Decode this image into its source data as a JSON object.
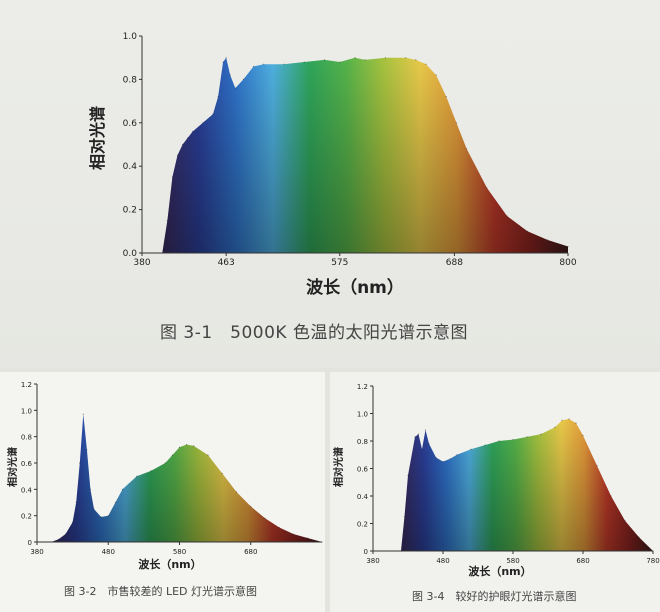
{
  "colors": {
    "spectrum": [
      "#3a2a5c",
      "#2b3f9a",
      "#2f73c9",
      "#4fb0e0",
      "#2fa55a",
      "#56b34a",
      "#a6c23f",
      "#e8c94a",
      "#e39a3a",
      "#c23a2a",
      "#8a2320",
      "#3d1a1a"
    ]
  },
  "chart_data": [
    {
      "type": "area",
      "title": "",
      "caption": "图 3-1　5000K 色温的太阳光谱示意图",
      "xlabel": "波长（nm）",
      "ylabel": "相对光谱",
      "xlim": [
        380,
        800
      ],
      "ylim": [
        0,
        1.0
      ],
      "xticks": [
        380,
        463,
        575,
        688,
        800
      ],
      "yticks": [
        "0.0",
        "0.2",
        "0.4",
        "0.6",
        "0.8",
        "1.0"
      ],
      "x": [
        400,
        405,
        410,
        415,
        420,
        425,
        430,
        440,
        450,
        455,
        460,
        463,
        467,
        472,
        480,
        490,
        500,
        520,
        540,
        560,
        575,
        590,
        600,
        620,
        640,
        650,
        660,
        670,
        680,
        690,
        700,
        720,
        740,
        760,
        780,
        800
      ],
      "values": [
        0.0,
        0.15,
        0.35,
        0.45,
        0.5,
        0.53,
        0.56,
        0.6,
        0.64,
        0.72,
        0.88,
        0.9,
        0.82,
        0.76,
        0.8,
        0.86,
        0.87,
        0.87,
        0.88,
        0.89,
        0.88,
        0.9,
        0.89,
        0.9,
        0.9,
        0.89,
        0.87,
        0.82,
        0.72,
        0.6,
        0.48,
        0.3,
        0.17,
        0.1,
        0.06,
        0.03
      ]
    },
    {
      "type": "area",
      "title": "",
      "caption": "图 3-2　市售较差的 LED 灯光谱示意图",
      "xlabel": "波长（nm）",
      "ylabel": "相对光谱",
      "xlim": [
        380,
        780
      ],
      "ylim": [
        0,
        1.2
      ],
      "xticks": [
        380,
        480,
        580,
        680
      ],
      "yticks": [
        "0",
        "0.2",
        "0.4",
        "0.6",
        "0.8",
        "1.0",
        "1.2"
      ],
      "x": [
        400,
        410,
        420,
        430,
        435,
        440,
        445,
        450,
        455,
        460,
        470,
        480,
        490,
        500,
        520,
        540,
        560,
        570,
        580,
        590,
        600,
        620,
        640,
        660,
        680,
        700,
        720,
        740,
        760,
        780
      ],
      "values": [
        0.0,
        0.02,
        0.06,
        0.15,
        0.3,
        0.6,
        0.97,
        0.7,
        0.4,
        0.25,
        0.19,
        0.2,
        0.3,
        0.4,
        0.5,
        0.54,
        0.6,
        0.66,
        0.72,
        0.74,
        0.73,
        0.66,
        0.52,
        0.38,
        0.27,
        0.18,
        0.11,
        0.06,
        0.03,
        0.0
      ]
    },
    {
      "type": "area",
      "title": "",
      "caption": "图 3-4　较好的护眼灯光谱示意图",
      "xlabel": "波长（nm）",
      "ylabel": "相对光谱",
      "xlim": [
        380,
        780
      ],
      "ylim": [
        0,
        1.2
      ],
      "xticks": [
        380,
        480,
        580,
        680,
        780
      ],
      "xticklabels": [
        "380",
        "480",
        "580",
        "680",
        "780"
      ],
      "yticks": [
        "0",
        "0.2",
        "0.4",
        "0.6",
        "0.8",
        "1.0",
        "1.2"
      ],
      "x": [
        420,
        425,
        430,
        440,
        445,
        450,
        455,
        460,
        470,
        480,
        490,
        500,
        520,
        540,
        560,
        580,
        600,
        620,
        640,
        650,
        660,
        670,
        680,
        700,
        720,
        740,
        760,
        780
      ],
      "values": [
        0.0,
        0.25,
        0.55,
        0.83,
        0.85,
        0.74,
        0.88,
        0.78,
        0.68,
        0.65,
        0.67,
        0.7,
        0.74,
        0.77,
        0.8,
        0.81,
        0.83,
        0.85,
        0.9,
        0.95,
        0.96,
        0.93,
        0.84,
        0.62,
        0.4,
        0.22,
        0.1,
        0.0
      ]
    }
  ]
}
